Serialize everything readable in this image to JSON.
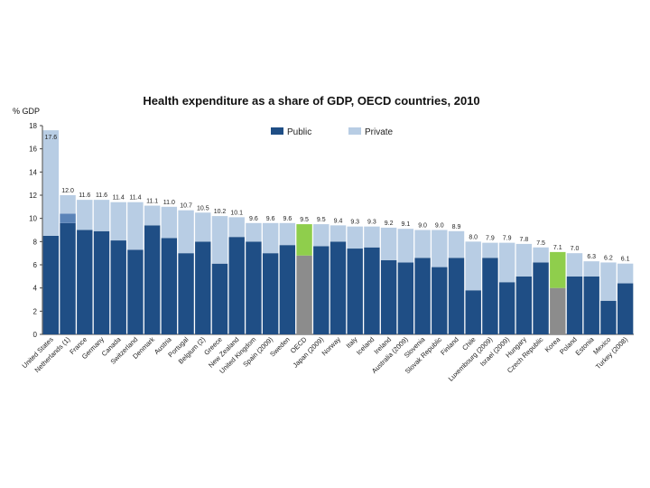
{
  "chart_data": {
    "type": "bar",
    "title": "Health expenditure as a share of GDP, OECD countries, 2010",
    "ylabel": "% GDP",
    "xlabel": "",
    "ylim": [
      0,
      18
    ],
    "yticks": [
      0,
      2,
      4,
      6,
      8,
      10,
      12,
      14,
      16,
      18
    ],
    "stacked": true,
    "grid": false,
    "legend_placement": "top-center",
    "colors": {
      "public": "#1f4e85",
      "private": "#b8cde4",
      "oecd_public": "#8c8c8c",
      "oecd_private": "#8fce4c",
      "korea_public": "#8c8c8c",
      "korea_private": "#8fce4c",
      "netherlands_unallocated": "#5b84b8"
    },
    "categories": [
      "United States",
      "Netherlands (1)",
      "France",
      "Germany",
      "Canada",
      "Switzerland",
      "Denmark",
      "Austria",
      "Portugal",
      "Belgium (2)",
      "Greece",
      "New Zealand",
      "United Kingdom",
      "Spain (2009)",
      "Sweden",
      "OECD",
      "Japan (2009)",
      "Norway",
      "Italy",
      "Iceland",
      "Ireland",
      "Australia (2009)",
      "Slovenia",
      "Slovak Republic",
      "Finland",
      "Chile",
      "Luxembourg (2009)",
      "Israel (2009)",
      "Hungary",
      "Czech Republic",
      "Korea",
      "Poland",
      "Estonia",
      "Mexico",
      "Turkey (2008)"
    ],
    "total_labels": [
      "17.6",
      "12.0",
      "11.6",
      "11.6",
      "11.4",
      "11.4",
      "11.1",
      "11.0",
      "10.7",
      "10.5",
      "10.2",
      "10.1",
      "9.6",
      "9.6",
      "9.6",
      "9.5",
      "9.5",
      "9.4",
      "9.3",
      "9.3",
      "9.2",
      "9.1",
      "9.0",
      "9.0",
      "8.9",
      "8.0",
      "7.9",
      "7.9",
      "7.8",
      "7.5",
      "7.1",
      "7.0",
      "6.3",
      "6.2",
      "6.1"
    ],
    "series": [
      {
        "name": "Public",
        "values": [
          8.5,
          9.6,
          9.0,
          8.9,
          8.1,
          7.3,
          9.4,
          8.3,
          7.0,
          8.0,
          6.1,
          8.4,
          8.0,
          7.0,
          7.7,
          6.8,
          7.6,
          8.0,
          7.4,
          7.5,
          6.4,
          6.2,
          6.6,
          5.8,
          6.6,
          3.8,
          6.6,
          4.5,
          5.0,
          6.2,
          4.0,
          5.0,
          5.0,
          2.9,
          4.4
        ]
      },
      {
        "name": "Private",
        "values": [
          9.1,
          2.4,
          2.6,
          2.7,
          3.3,
          4.1,
          1.7,
          2.7,
          3.7,
          2.5,
          4.1,
          1.7,
          1.6,
          2.6,
          1.9,
          2.7,
          1.9,
          1.4,
          1.9,
          1.8,
          2.8,
          2.9,
          2.4,
          3.2,
          2.3,
          4.2,
          1.3,
          3.4,
          2.8,
          1.3,
          3.1,
          2.0,
          1.3,
          3.3,
          1.7
        ]
      }
    ],
    "annotations": {
      "netherlands_unallocated_segment": [
        9.6,
        10.4
      ]
    }
  }
}
